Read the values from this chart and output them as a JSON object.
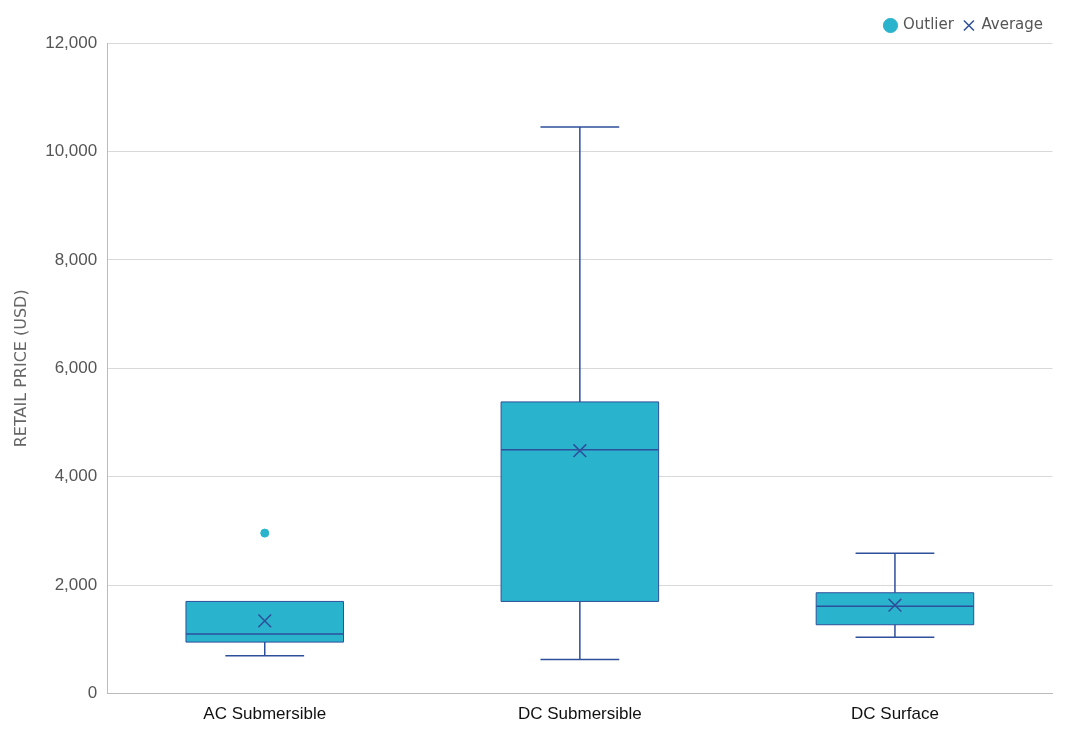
{
  "chart_data": {
    "type": "box",
    "ylabel": "RETAIL PRICE (USD)",
    "categories": [
      "AC Submersible",
      "DC Submersible",
      "DC Surface"
    ],
    "ylim": [
      0,
      12000
    ],
    "yticks": [
      {
        "value": 0,
        "label": "0"
      },
      {
        "value": 2000,
        "label": "2,000"
      },
      {
        "value": 4000,
        "label": "4,000"
      },
      {
        "value": 6000,
        "label": "6,000"
      },
      {
        "value": 8000,
        "label": "8,000"
      },
      {
        "value": 10000,
        "label": "10,000"
      },
      {
        "value": 12000,
        "label": "12,000"
      }
    ],
    "grid": "y",
    "legend": "top right",
    "series": [
      {
        "color": "#29b3cc",
        "boxes": [
          {
            "low": 700,
            "q1": 950,
            "median": 1100,
            "q3": 1700,
            "high": 1700
          },
          {
            "low": 630,
            "q1": 1700,
            "median": 4500,
            "q3": 5380,
            "high": 10450
          },
          {
            "low": 1040,
            "q1": 1270,
            "median": 1610,
            "q3": 1860,
            "high": 2590
          }
        ]
      },
      {
        "type": "scatter",
        "name": "Outlier",
        "color": "#29b3cc",
        "marker": "circle",
        "x": [
          "AC Submersible"
        ],
        "values": [
          2960
        ]
      },
      {
        "type": "scatter",
        "name": "Average",
        "color": "#2e4f9a",
        "marker": "cross",
        "x": [
          "AC Submersible",
          "DC Submersible",
          "DC Surface"
        ],
        "values": [
          1340,
          4480,
          1630
        ]
      }
    ]
  }
}
